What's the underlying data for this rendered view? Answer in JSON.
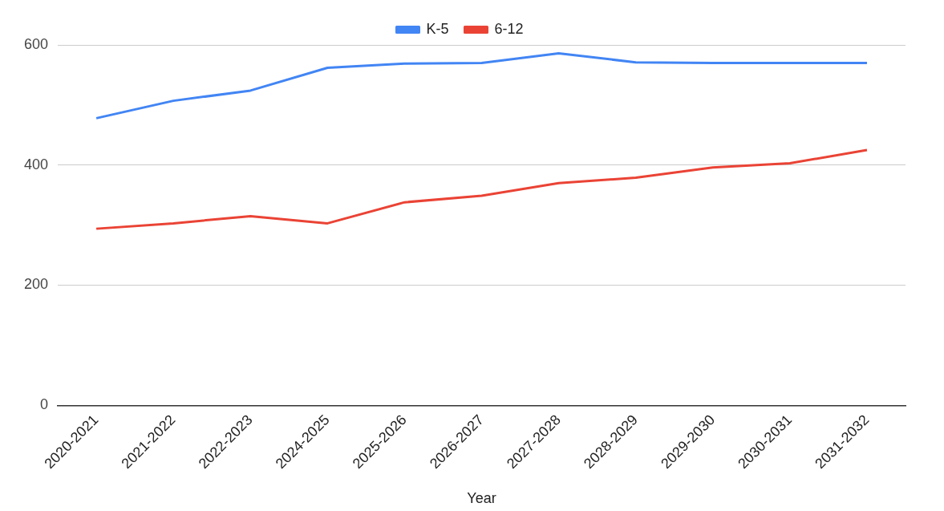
{
  "chart_data": {
    "type": "line",
    "xlabel": "Year",
    "categories": [
      "2020-2021",
      "2021-2022",
      "2022-2023",
      "2024-2025",
      "2025-2026",
      "2026-2027",
      "2027-2028",
      "2028-2029",
      "2029-2030",
      "2030-2031",
      "2031-2032"
    ],
    "series": [
      {
        "name": "K-5",
        "color": "#4285f4",
        "values": [
          478,
          507,
          524,
          562,
          569,
          570,
          586,
          571,
          570,
          570,
          570
        ]
      },
      {
        "name": "6-12",
        "color": "#ea4335",
        "values": [
          294,
          303,
          315,
          303,
          338,
          349,
          370,
          379,
          396,
          403,
          425
        ]
      }
    ],
    "ylim": [
      0,
      600
    ],
    "yticks": [
      0,
      200,
      400,
      600
    ],
    "grid": "y",
    "legend": "top",
    "marker": "none",
    "line_style": "solid"
  }
}
